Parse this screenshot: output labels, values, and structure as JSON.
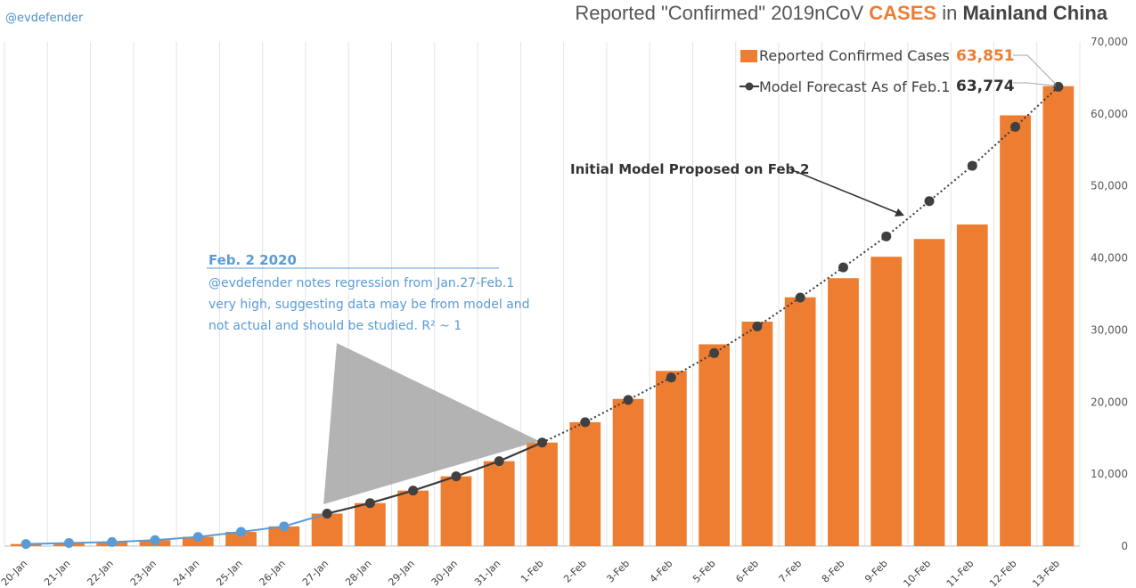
{
  "header": {
    "handle": "@evdefender",
    "title_prefix": "Reported \"Confirmed\" 2019nCoV ",
    "title_highlight": "CASES",
    "title_mid": " in ",
    "title_bold": "Mainland China"
  },
  "colors": {
    "bar": "#ed7d31",
    "model": "#3a3a3a",
    "early_line": "#5b9bd5",
    "annotation": "#5b9bd5",
    "triangle": "#a6a6a6",
    "grid": "#e4e4e4"
  },
  "legend": [
    {
      "label": "Reported Confirmed Cases",
      "value": "63,851",
      "value_color": "#ed7d31",
      "marker": "bar"
    },
    {
      "label": "Model Forecast As of Feb.1",
      "value": "63,774",
      "value_color": "#333333",
      "marker": "line-dot"
    }
  ],
  "annotations": {
    "model_label": "Initial Model Proposed on Feb.2",
    "note_title": "Feb. 2  2020",
    "note_lines": [
      "@evdefender notes regression from Jan.27-Feb.1",
      "very high, suggesting data may be from model and",
      "not actual and should be studied.  R² ~ 1"
    ]
  },
  "chart_data": {
    "type": "bar",
    "categories": [
      "20-Jan",
      "21-Jan",
      "22-Jan",
      "23-Jan",
      "24-Jan",
      "25-Jan",
      "26-Jan",
      "27-Jan",
      "28-Jan",
      "29-Jan",
      "30-Jan",
      "31-Jan",
      "1-Feb",
      "2-Feb",
      "3-Feb",
      "4-Feb",
      "5-Feb",
      "6-Feb",
      "7-Feb",
      "8-Feb",
      "9-Feb",
      "10-Feb",
      "11-Feb",
      "12-Feb",
      "13-Feb"
    ],
    "series": [
      {
        "name": "Reported Confirmed Cases",
        "type": "bar",
        "values": [
          291,
          440,
          571,
          830,
          1287,
          1975,
          2744,
          4515,
          5974,
          7711,
          9692,
          11791,
          14380,
          17205,
          20438,
          24324,
          28018,
          31161,
          34546,
          37198,
          40171,
          42638,
          44653,
          59804,
          63851
        ]
      },
      {
        "name": "Model Forecast As of Feb.1",
        "type": "line",
        "values": [
          null,
          null,
          null,
          null,
          null,
          null,
          null,
          4515,
          5974,
          7711,
          9692,
          11791,
          14380,
          17205,
          20300,
          23400,
          26800,
          30500,
          34500,
          38700,
          43000,
          47900,
          52800,
          58200,
          63774
        ]
      },
      {
        "name": "",
        "type": "line",
        "values": [
          291,
          440,
          571,
          830,
          1287,
          1975,
          2744,
          4515,
          null,
          null,
          null,
          null,
          null,
          null,
          null,
          null,
          null,
          null,
          null,
          null,
          null,
          null,
          null,
          null,
          null
        ]
      }
    ],
    "y_axis": {
      "side": "right",
      "ticks": [
        0,
        10000,
        20000,
        30000,
        40000,
        50000,
        60000,
        70000
      ],
      "tick_labels": [
        "0",
        "10,000",
        "20,000",
        "30,000",
        "40,000",
        "50,000",
        "60,000",
        "70,000"
      ],
      "ylim": [
        0,
        70000
      ]
    },
    "grid": "vertical",
    "legend_position": "top-right",
    "title": "Reported \"Confirmed\" 2019nCoV CASES in Mainland China",
    "xlabel": "",
    "ylabel": ""
  }
}
